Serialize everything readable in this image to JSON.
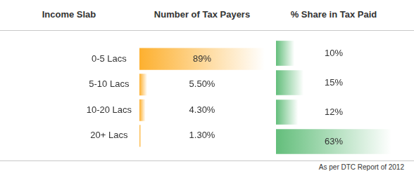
{
  "chart_data": [
    {
      "type": "bar",
      "orientation": "horizontal",
      "title": "Number of Tax Payers",
      "y_label": "Income Slab",
      "categories": [
        "0-5 Lacs",
        "5-10 Lacs",
        "10-20 Lacs",
        "20+ Lacs"
      ],
      "values": [
        89,
        5.5,
        4.3,
        1.3
      ],
      "value_labels": [
        "89%",
        "5.50%",
        "4.30%",
        "1.30%"
      ],
      "data_labels": true,
      "color": "#fdb02f",
      "xlim": [
        0,
        89
      ],
      "grid": false,
      "tick_labels": "y"
    },
    {
      "type": "bar",
      "orientation": "horizontal",
      "title": "% Share in Tax Paid",
      "categories": [
        "0-5 Lacs",
        "5-10 Lacs",
        "10-20 Lacs",
        "20+ Lacs"
      ],
      "values": [
        10,
        15,
        12,
        63
      ],
      "value_labels": [
        "10%",
        "15%",
        "12%",
        "63%"
      ],
      "data_labels": true,
      "color": "#63be7b",
      "xlim": [
        0,
        63
      ],
      "grid": false,
      "tick_labels": false
    }
  ],
  "footnote": "As per DTC Report of 2012"
}
